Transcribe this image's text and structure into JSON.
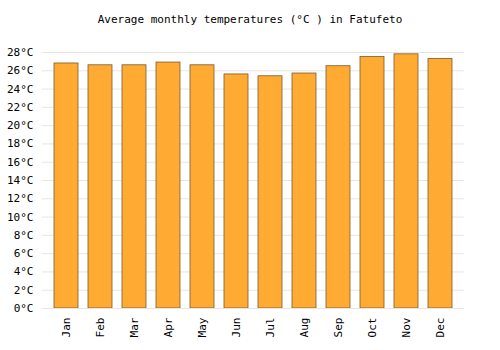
{
  "chart_data": {
    "type": "bar",
    "title": "Average monthly temperatures (°C ) in Fatufeto",
    "categories": [
      "Jan",
      "Feb",
      "Mar",
      "Apr",
      "May",
      "Jun",
      "Jul",
      "Aug",
      "Sep",
      "Oct",
      "Nov",
      "Dec"
    ],
    "values": [
      26.8,
      26.6,
      26.6,
      26.9,
      26.6,
      25.6,
      25.4,
      25.7,
      26.5,
      27.5,
      27.8,
      27.3
    ],
    "color": "#ffaa33",
    "ylim": [
      0,
      28
    ],
    "yticks": [
      {
        "value": 0,
        "label": "0°C"
      },
      {
        "value": 2,
        "label": "2°C"
      },
      {
        "value": 4,
        "label": "4°C"
      },
      {
        "value": 6,
        "label": "6°C"
      },
      {
        "value": 8,
        "label": "8°C"
      },
      {
        "value": 10,
        "label": "10°C"
      },
      {
        "value": 12,
        "label": "12°C"
      },
      {
        "value": 14,
        "label": "14°C"
      },
      {
        "value": 16,
        "label": "16°C"
      },
      {
        "value": 18,
        "label": "18°C"
      },
      {
        "value": 20,
        "label": "20°C"
      },
      {
        "value": 22,
        "label": "22°C"
      },
      {
        "value": 24,
        "label": "24°C"
      },
      {
        "value": 26,
        "label": "26°C"
      },
      {
        "value": 28,
        "label": "28°C"
      }
    ],
    "grid": true
  }
}
